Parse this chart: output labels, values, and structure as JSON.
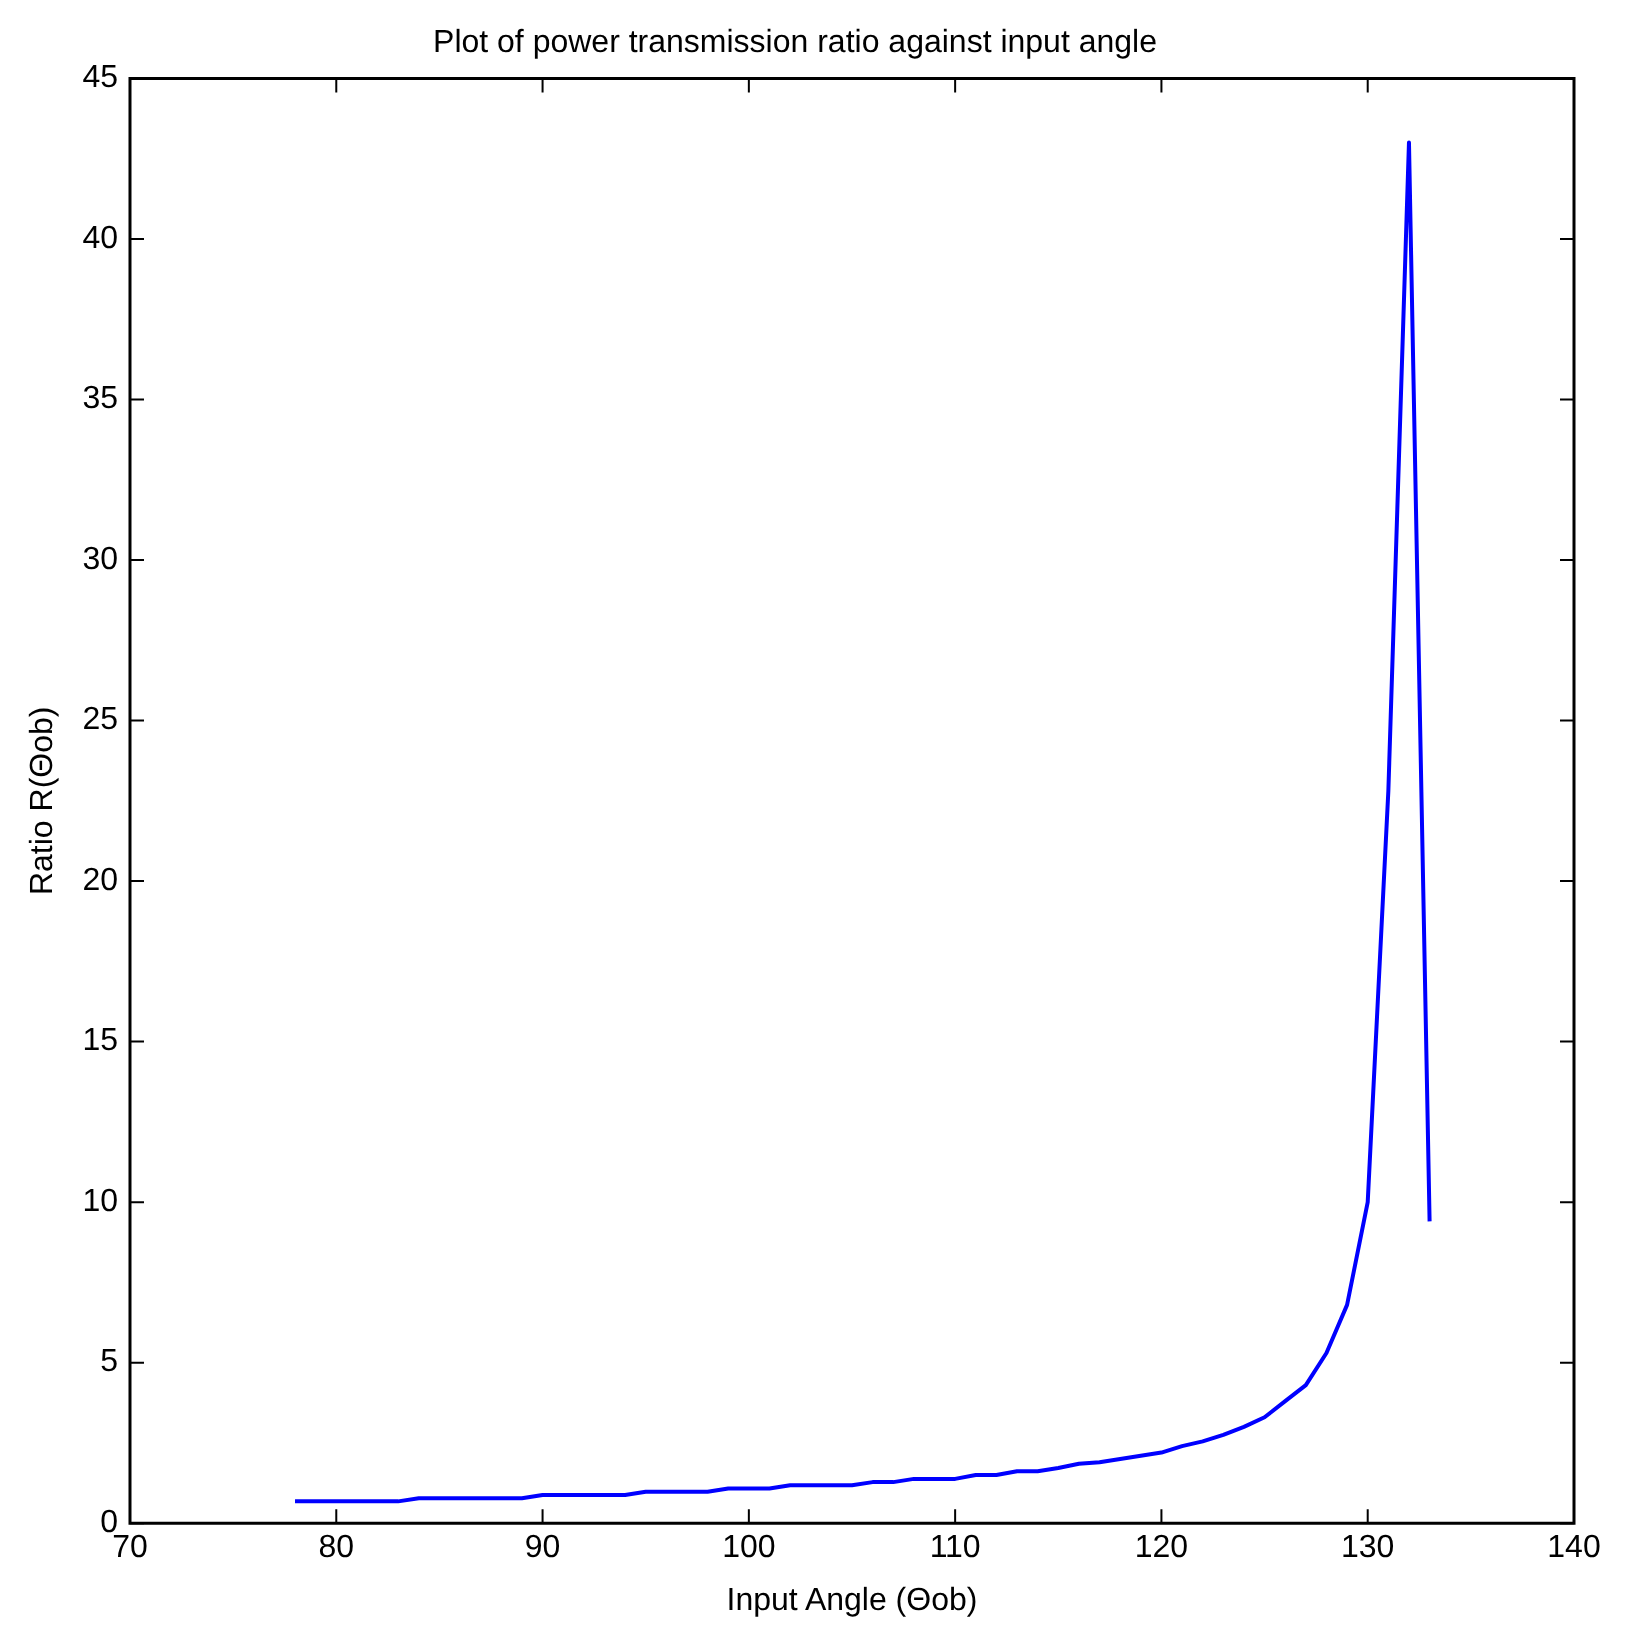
{
  "chart_data": {
    "type": "line",
    "title": "Plot of power transmission ratio against input angle",
    "xlabel": "Input Angle (Θob)",
    "ylabel": "Ratio R(Θob)",
    "x": [
      78,
      79,
      80,
      81,
      82,
      83,
      84,
      85,
      86,
      87,
      88,
      89,
      90,
      91,
      92,
      93,
      94,
      95,
      96,
      97,
      98,
      99,
      100,
      101,
      102,
      103,
      104,
      105,
      106,
      107,
      108,
      109,
      110,
      111,
      112,
      113,
      114,
      115,
      116,
      117,
      118,
      119,
      120,
      121,
      122,
      123,
      124,
      125,
      126,
      127,
      128,
      129,
      130,
      131,
      132,
      133
    ],
    "series": [
      {
        "color": "#0000ff",
        "values": [
          0.68,
          0.68,
          0.68,
          0.68,
          0.68,
          0.68,
          0.78,
          0.78,
          0.78,
          0.78,
          0.78,
          0.78,
          0.88,
          0.88,
          0.88,
          0.88,
          0.88,
          0.98,
          0.98,
          0.98,
          0.98,
          1.08,
          1.08,
          1.08,
          1.18,
          1.18,
          1.18,
          1.18,
          1.28,
          1.28,
          1.38,
          1.38,
          1.38,
          1.5,
          1.5,
          1.62,
          1.62,
          1.72,
          1.85,
          1.9,
          2.0,
          2.1,
          2.2,
          2.4,
          2.55,
          2.75,
          3.0,
          3.3,
          3.8,
          4.3,
          5.3,
          6.8,
          10.0,
          22.8,
          43.0,
          9.4
        ]
      }
    ],
    "xlim": [
      70,
      140
    ],
    "xticks": [
      70,
      80,
      90,
      100,
      110,
      120,
      130,
      140
    ],
    "ylim": [
      0,
      45
    ],
    "yticks": [
      0,
      5,
      10,
      15,
      20,
      25,
      30,
      35,
      40,
      45
    ],
    "grid": false,
    "legend": false,
    "marker": "none",
    "line_style": "solid"
  }
}
